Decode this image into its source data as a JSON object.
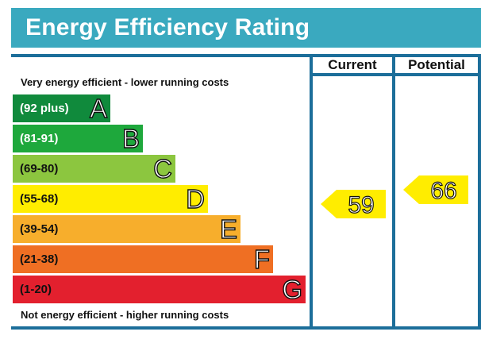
{
  "title": "Energy Efficiency Rating",
  "columns": {
    "current": "Current",
    "potential": "Potential"
  },
  "notes": {
    "top": "Very energy efficient - lower running costs",
    "bottom": "Not energy efficient - higher running costs"
  },
  "chart_data": {
    "type": "bar",
    "title": "Energy Efficiency Rating",
    "bands": [
      {
        "letter": "A",
        "range": "(92 plus)",
        "min": 92,
        "max": 100,
        "color": "#108a3c",
        "text_color": "#ffffff"
      },
      {
        "letter": "B",
        "range": "(81-91)",
        "min": 81,
        "max": 91,
        "color": "#1ea83c",
        "text_color": "#ffffff"
      },
      {
        "letter": "C",
        "range": "(69-80)",
        "min": 69,
        "max": 80,
        "color": "#8cc63f",
        "text_color": "#111111"
      },
      {
        "letter": "D",
        "range": "(55-68)",
        "min": 55,
        "max": 68,
        "color": "#ffed00",
        "text_color": "#111111"
      },
      {
        "letter": "E",
        "range": "(39-54)",
        "min": 39,
        "max": 54,
        "color": "#f7ae2c",
        "text_color": "#111111"
      },
      {
        "letter": "F",
        "range": "(21-38)",
        "min": 21,
        "max": 38,
        "color": "#ef6f23",
        "text_color": "#111111"
      },
      {
        "letter": "G",
        "range": "(1-20)",
        "min": 1,
        "max": 20,
        "color": "#e3202e",
        "text_color": "#111111"
      }
    ],
    "ratings": {
      "current": {
        "value": 59,
        "label": "59",
        "band": "D",
        "color": "#ffed00"
      },
      "potential": {
        "value": 66,
        "label": "66",
        "band": "D",
        "color": "#ffed00"
      }
    }
  }
}
